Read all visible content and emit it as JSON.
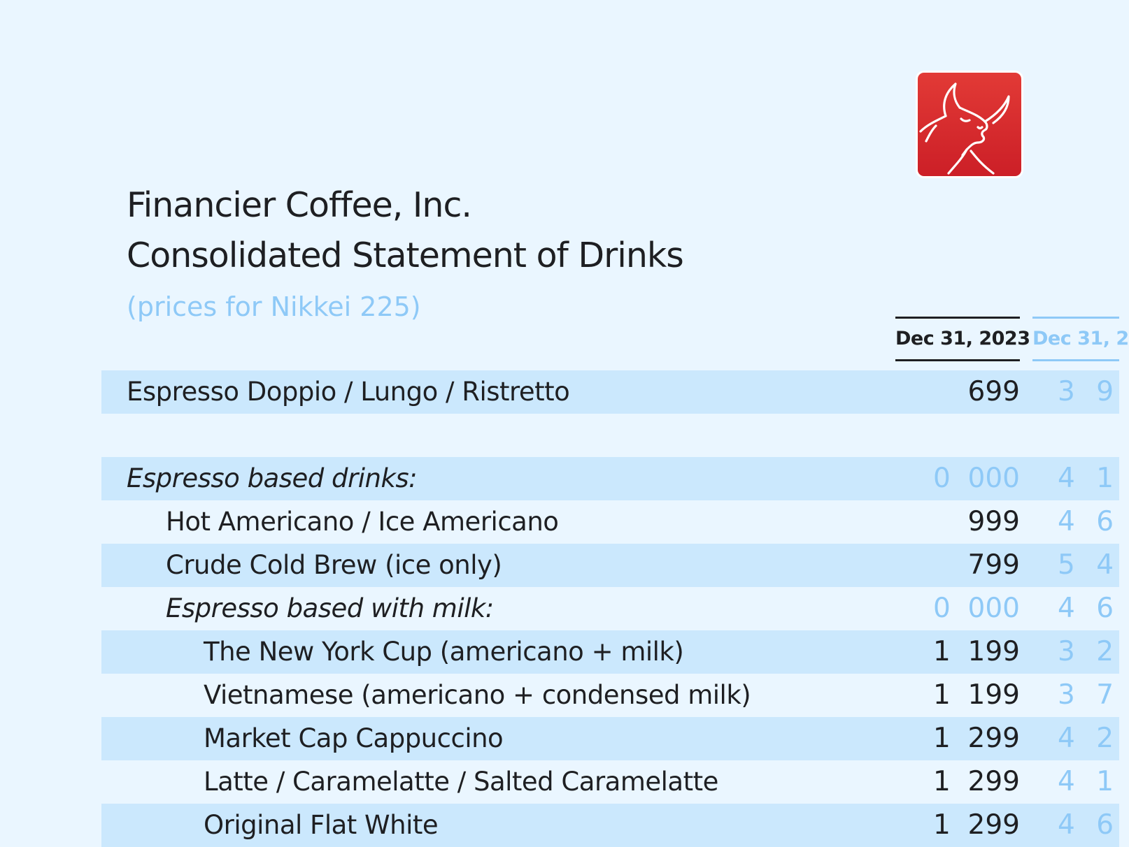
{
  "company": "Financier Coffee, Inc.",
  "statement_title": "Consolidated Statement of Drinks",
  "subtitle": "(prices for Nikkei 225)",
  "logo": {
    "icon": "bull-head-icon",
    "color": "#d8282e"
  },
  "columns": [
    {
      "label": "Dec 31, 2023"
    },
    {
      "label": "Dec 31, 2"
    }
  ],
  "rows": [
    {
      "label": "Espresso Doppio / Lungo / Ristretto",
      "indent": 0,
      "style": "normal",
      "band": true,
      "value": "699",
      "value_dim": false,
      "prior": "3 9"
    },
    {
      "label": "",
      "indent": 0,
      "style": "spacer",
      "band": false,
      "value": "",
      "value_dim": false,
      "prior": ""
    },
    {
      "label": "Espresso based drinks:",
      "indent": 0,
      "style": "italic",
      "band": true,
      "value": "0  000",
      "value_dim": true,
      "prior": "4 1"
    },
    {
      "label": "Hot Americano / Ice Americano",
      "indent": 1,
      "style": "normal",
      "band": false,
      "value": "999",
      "value_dim": false,
      "prior": "4 6"
    },
    {
      "label": "Crude Cold Brew (ice only)",
      "indent": 1,
      "style": "normal",
      "band": true,
      "value": "799",
      "value_dim": false,
      "prior": "5 4"
    },
    {
      "label": "Espresso based with milk:",
      "indent": 1,
      "style": "italic",
      "band": false,
      "value": "0  000",
      "value_dim": true,
      "prior": "4 6"
    },
    {
      "label": "The New York Cup (americano + milk)",
      "indent": 2,
      "style": "normal",
      "band": true,
      "value": "1  199",
      "value_dim": false,
      "prior": "3 2"
    },
    {
      "label": "Vietnamese (americano + condensed milk)",
      "indent": 2,
      "style": "normal",
      "band": false,
      "value": "1  199",
      "value_dim": false,
      "prior": "3 7"
    },
    {
      "label": "Market Cap Cappuccino",
      "indent": 2,
      "style": "normal",
      "band": true,
      "value": "1  299",
      "value_dim": false,
      "prior": "4 2"
    },
    {
      "label": "Latte / Caramelatte / Salted Caramelatte",
      "indent": 2,
      "style": "normal",
      "band": false,
      "value": "1  299",
      "value_dim": false,
      "prior": "4 1"
    },
    {
      "label": "Original Flat White",
      "indent": 2,
      "style": "normal",
      "band": true,
      "value": "1  299",
      "value_dim": false,
      "prior": "4 6"
    }
  ]
}
